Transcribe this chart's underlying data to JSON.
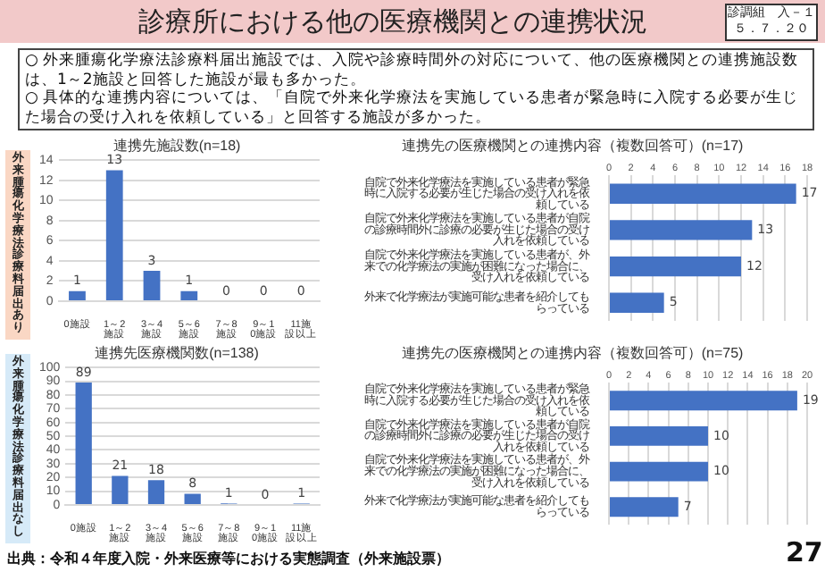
{
  "chart_data": [
    {
      "type": "bar",
      "title": "連携先施設数(n=18)",
      "categories": [
        "0施設",
        "1～2施設",
        "3～4施設",
        "5～6施設",
        "7～8施設",
        "9～10施設",
        "11施設以上"
      ],
      "values": [
        1,
        13,
        3,
        1,
        0,
        0,
        0
      ],
      "color": "#4472c4",
      "ylim": [
        0,
        14
      ],
      "yticks": [
        0,
        2,
        4,
        6,
        8,
        10,
        12,
        14
      ],
      "grid": "y",
      "data_labels": true,
      "annotations": [
        "診療所における他の医療機関との連携状況",
        "診調組　入－１",
        "５．７．２０",
        "○ 外来腫瘍化学療法診療料届出施設では、入院や診療時間外の対応について、他の医療機関との連携施設数は、1～2施設と回答した施設が最も多かった。",
        "○ 具体的な連携内容については、「自院で外来化学療法を実施している患者が緊急時に入院する必要が生じた場合の受け入れを依頼している」と回答する施設が多かった。",
        "外来腫瘍化学療法診療料届出あり"
      ]
    },
    {
      "type": "bar",
      "orientation": "horizontal",
      "title": "連携先の医療機関との連携内容（複数回答可）(n=17)",
      "categories": [
        "自院で外来化学療法を実施している患者が緊急時に入院する必要が生じた場合の受け入れを依頼している",
        "自院で外来化学療法を実施している患者が自院の診療時間外に診療の必要が生じた場合の受け入れを依頼している",
        "自院で外来化学療法を実施している患者が、外来での化学療法の実施が困難になった場合に、受け入れを依頼している",
        "外来で化学療法が実施可能な患者を紹介してもらっている"
      ],
      "values": [
        17,
        13,
        12,
        5
      ],
      "color": "#4472c4",
      "xlim": [
        0,
        18
      ],
      "xticks": [
        0,
        2,
        4,
        6,
        8,
        10,
        12,
        14,
        16,
        18
      ],
      "grid": "x",
      "data_labels": true
    },
    {
      "type": "bar",
      "title": "連携先医療機関数(n=138)",
      "categories": [
        "0施設",
        "1～2施設",
        "3～4施設",
        "5～6施設",
        "7～8施設",
        "9～10施設",
        "11施設以上"
      ],
      "values": [
        89,
        21,
        18,
        8,
        1,
        0,
        1
      ],
      "color": "#4472c4",
      "ylim": [
        0,
        100
      ],
      "yticks": [
        0,
        10,
        20,
        30,
        40,
        50,
        60,
        70,
        80,
        90,
        100
      ],
      "grid": "y",
      "data_labels": true,
      "annotations": [
        "外来腫瘍化学療法診療料届出なし"
      ]
    },
    {
      "type": "bar",
      "orientation": "horizontal",
      "title": "連携先の医療機関との連携内容（複数回答可）(n=75)",
      "categories": [
        "自院で外来化学療法を実施している患者が緊急時に入院する必要が生じた場合の受け入れを依頼している",
        "自院で外来化学療法を実施している患者が自院の診療時間外に診療の必要が生じた場合の受け入れを依頼している",
        "自院で外来化学療法を実施している患者が、外来での化学療法の実施が困難になった場合に、受け入れを依頼している",
        "外来で化学療法が実施可能な患者を紹介してもらっている"
      ],
      "values": [
        19,
        10,
        10,
        7
      ],
      "color": "#4472c4",
      "xlim": [
        0,
        20
      ],
      "xticks": [
        0,
        2,
        4,
        6,
        8,
        10,
        12,
        14,
        16,
        18,
        20
      ],
      "grid": "x",
      "data_labels": true,
      "annotations": [
        "出典：令和４年度入院・外来医療等における実態調査（外来施設票）",
        "27"
      ]
    }
  ]
}
